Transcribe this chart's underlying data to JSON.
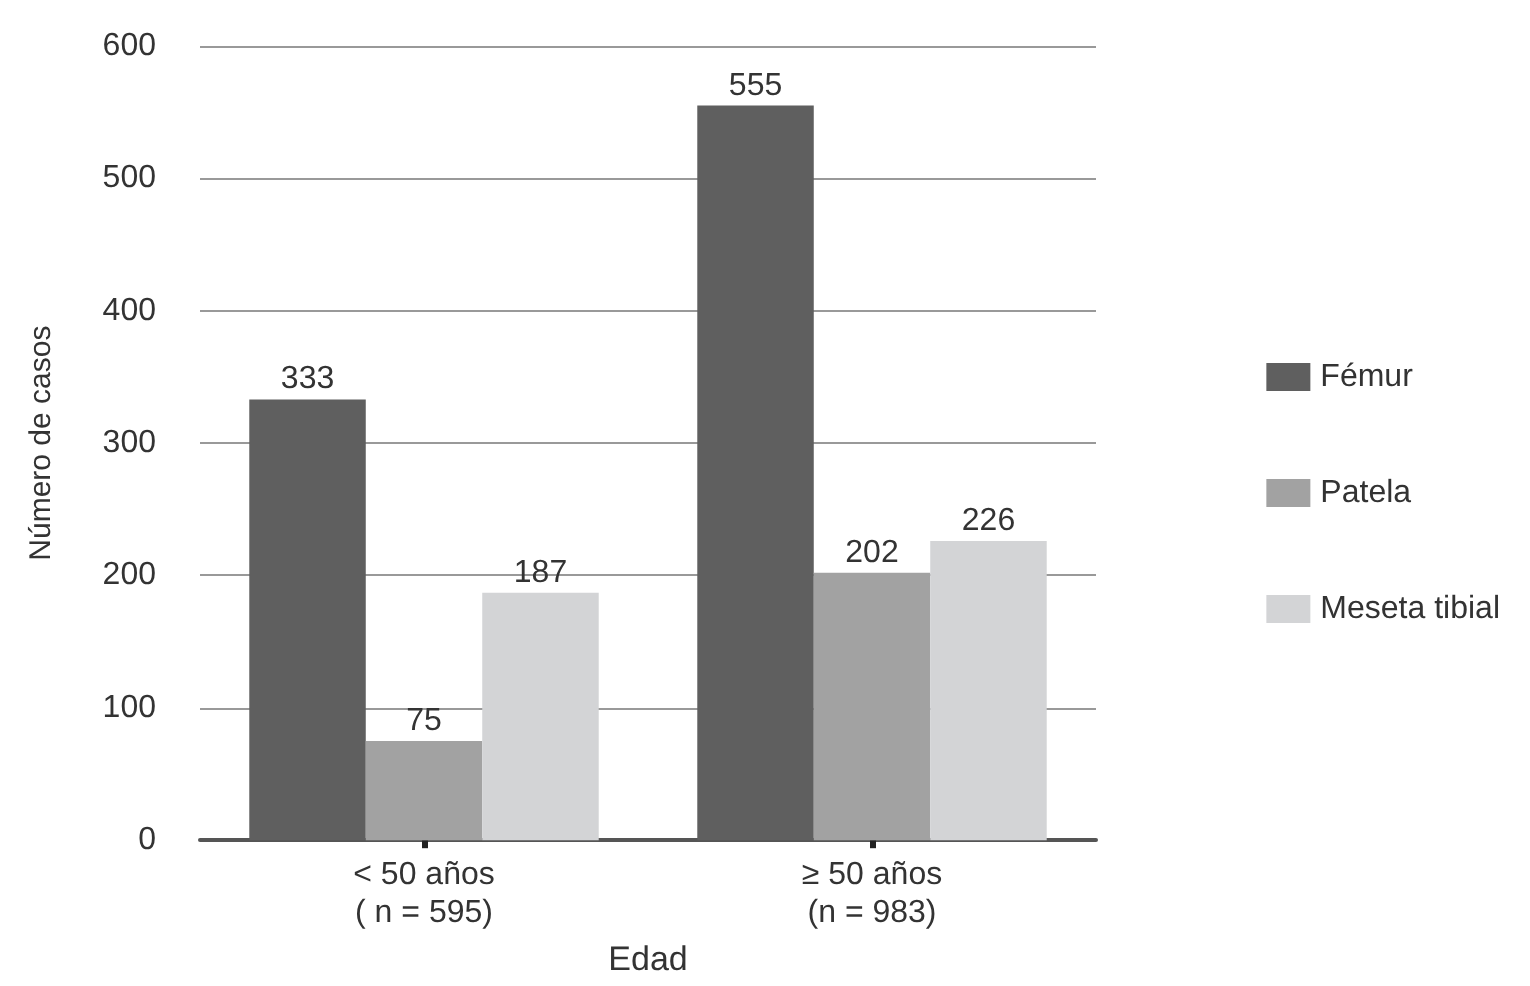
{
  "chart_data": {
    "type": "bar",
    "ylabel": "Número de casos",
    "xlabel": "Edad",
    "categories": [
      "< 50 años\n( n = 595)",
      "≥ 50 años\n(n = 983)"
    ],
    "series": [
      {
        "name": "Fémur",
        "color": "#5f5f5f",
        "values": [
          333,
          555
        ]
      },
      {
        "name": "Patela",
        "color": "#a2a2a2",
        "values": [
          75,
          202
        ]
      },
      {
        "name": "Meseta tibial",
        "color": "#d3d4d6",
        "values": [
          187,
          226
        ]
      }
    ],
    "ylim": [
      0,
      600
    ],
    "yticks": [
      0,
      100,
      200,
      300,
      400,
      500,
      600
    ],
    "grid": "y",
    "legend": "right",
    "data_labels": true
  }
}
